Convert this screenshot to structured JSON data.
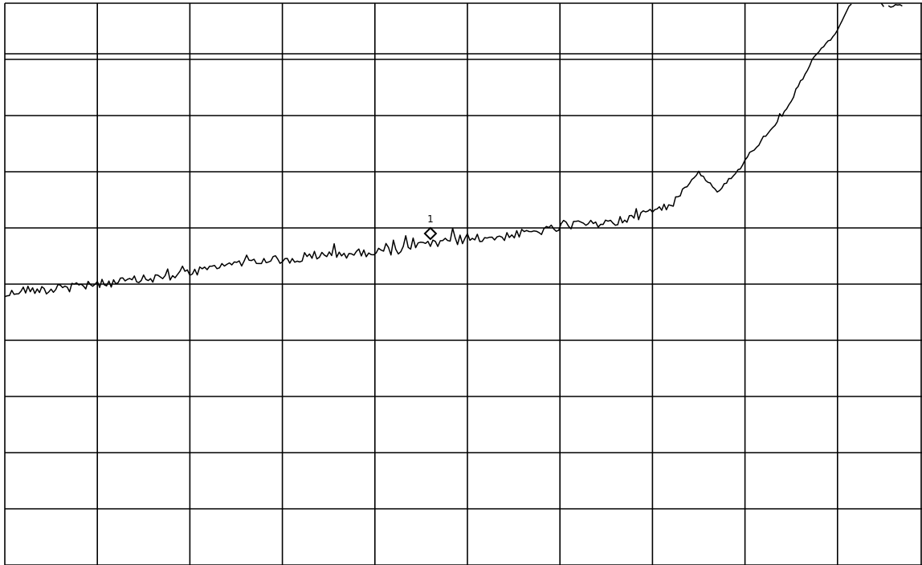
{
  "chart_data": {
    "type": "line",
    "title": "",
    "xlabel": "",
    "ylabel": "",
    "grid": true,
    "x_divisions": 10,
    "y_divisions": 10,
    "xlim": [
      0,
      10
    ],
    "ylim": [
      0,
      10
    ],
    "reference_level_y": 9.1,
    "series": [
      {
        "x": [
          0,
          0.2,
          0.5,
          0.8,
          1.0,
          1.3,
          1.6,
          2.0,
          2.4,
          2.8,
          3.0,
          3.4,
          3.8,
          4.2,
          4.6,
          5.0,
          5.4,
          5.8,
          6.2,
          6.6,
          6.8,
          7.0,
          7.2,
          7.3,
          7.5,
          7.7,
          7.9,
          8.0,
          8.2,
          8.4,
          8.6,
          8.75,
          9.0,
          9.15,
          9.3,
          9.5,
          9.7
        ],
        "y": [
          4.8,
          4.9,
          4.9,
          4.95,
          5.0,
          5.05,
          5.1,
          5.2,
          5.35,
          5.45,
          5.4,
          5.5,
          5.55,
          5.6,
          5.7,
          5.8,
          5.85,
          5.95,
          6.05,
          6.1,
          6.2,
          6.3,
          6.4,
          6.6,
          7.0,
          6.65,
          6.95,
          7.2,
          7.6,
          8.0,
          8.55,
          9.05,
          9.5,
          10.0,
          10.3,
          9.95,
          9.95
        ]
      }
    ],
    "markers": [
      {
        "label": "1",
        "x": 4.6,
        "y": 5.9
      }
    ]
  }
}
